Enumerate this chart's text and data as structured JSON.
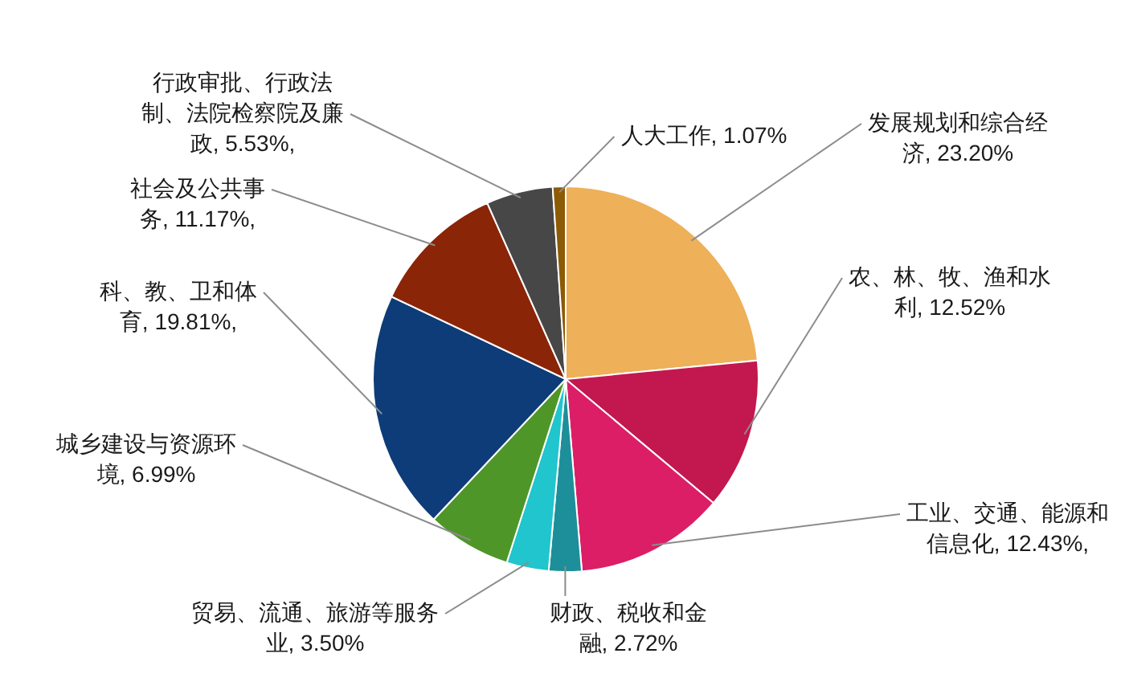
{
  "chart_data": {
    "type": "pie",
    "categories": [
      "发展规划和综合经济",
      "农、林、牧、渔和水利",
      "工业、交通、能源和信息化",
      "财政、税收和金融",
      "贸易、流通、旅游等服务业",
      "城乡建设与资源环境",
      "科、教、卫和体育",
      "社会及公共事务",
      "行政审批、行政法制、法院检察院及廉政",
      "人大工作"
    ],
    "values": [
      23.2,
      12.52,
      12.43,
      2.72,
      3.5,
      6.99,
      19.81,
      11.17,
      5.53,
      1.07
    ],
    "colors": [
      "#eeb058",
      "#c3174f",
      "#dc1e66",
      "#1d8f9a",
      "#20c5cd",
      "#4f9629",
      "#0d3c78",
      "#8b2507",
      "#474747",
      "#8c5b05"
    ],
    "value_labels": [
      "23.20%",
      "12.52%",
      "12.43%,",
      "2.72%",
      "3.50%",
      "6.99%",
      "19.81%,",
      "11.17%,",
      "5.53%,",
      "1.07%"
    ]
  }
}
